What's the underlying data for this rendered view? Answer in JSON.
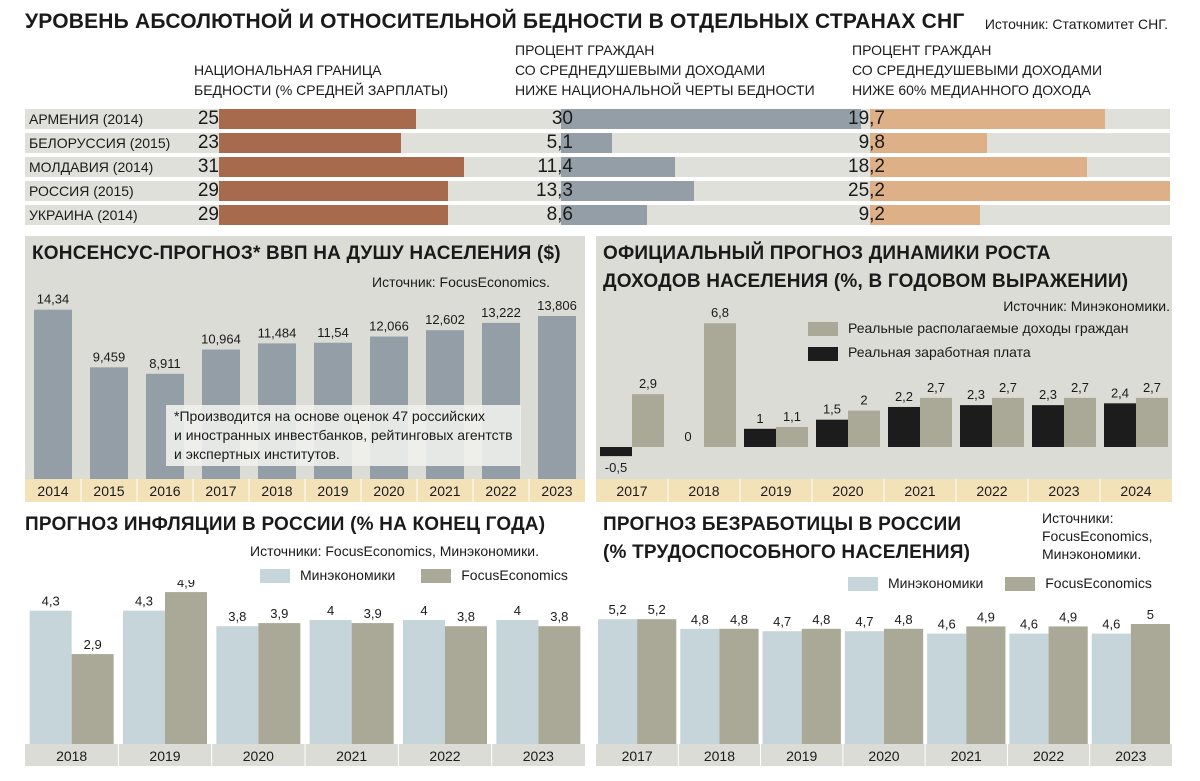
{
  "poverty": {
    "title": "УРОВЕНЬ АБСОЛЮТНОЙ И ОТНОСИТЕЛЬНОЙ БЕДНОСТИ В ОТДЕЛЬНЫХ СТРАНАХ СНГ",
    "source": "Источник: Статкомитет СНГ.",
    "col1_header": [
      "НАЦИОНАЛЬНАЯ ГРАНИЦА",
      "БЕДНОСТИ (% СРЕДНЕЙ ЗАРПЛАТЫ)"
    ],
    "col2_header": [
      "ПРОЦЕНТ ГРАЖДАН",
      "СО СРЕДНЕДУШЕВЫМИ ДОХОДАМИ",
      "НИЖЕ НАЦИОНАЛЬНОЙ ЧЕРТЫ БЕДНОСТИ"
    ],
    "col3_header": [
      "ПРОЦЕНТ ГРАЖДАН",
      "СО СРЕДНЕДУШЕВЫМИ ДОХОДАМИ",
      "НИЖЕ 60% МЕДИАННОГО ДОХОДА"
    ],
    "colors": {
      "col1": "#a86a4c",
      "col2": "#939ea7",
      "col3": "#ddb088",
      "track": "#e0e0db"
    }
  },
  "gdp": {
    "title": "КОНСЕНСУС-ПРОГНОЗ* ВВП НА ДУШУ НАСЕЛЕНИЯ ($)",
    "source": "Источник: FocusEconomics.",
    "note": [
      "*Производится на основе оценок 47 российских",
      "и иностранных инвестбанков, рейтинговых агентств",
      "и экспертных институтов."
    ]
  },
  "income": {
    "title": [
      "ОФИЦИАЛЬНЫЙ ПРОГНОЗ ДИНАМИКИ РОСТА",
      "ДОХОДОВ НАСЕЛЕНИЯ (%, В ГОДОВОМ ВЫРАЖЕНИИ)"
    ],
    "source": "Источник: Минэкономики."
  },
  "inflation": {
    "title": "ПРОГНОЗ ИНФЛЯЦИИ В РОССИИ (% НА КОНЕЦ ГОДА)",
    "source": "Источники: FocusEconomics, Минэкономики."
  },
  "unemployment": {
    "title": [
      "ПРОГНОЗ БЕЗРАБОТИЦЫ В РОССИИ",
      "(% ТРУДОСПОСОБНОГО НАСЕЛЕНИЯ)"
    ],
    "source": [
      "Источники:",
      "FocusEconomics,",
      "Минэкономики."
    ]
  },
  "chart_data": [
    {
      "id": "poverty",
      "type": "bar",
      "orientation": "horizontal",
      "categories": [
        "АРМЕНИЯ (2014)",
        "БЕЛОРУССИЯ (2015)",
        "МОЛДАВИЯ (2014)",
        "РОССИЯ (2015)",
        "УКРАИНА (2014)"
      ],
      "series": [
        {
          "name": "НАЦИОНАЛЬНАЯ ГРАНИЦА БЕДНОСТИ (% СРЕДНЕЙ ЗАРПЛАТЫ)",
          "values": [
            25,
            23,
            31,
            29,
            29
          ],
          "labels": [
            "25",
            "23",
            "31",
            "29",
            "29"
          ],
          "max": 37.5
        },
        {
          "name": "ПРОЦЕНТ ГРАЖДАН СО СРЕДНЕДУШЕВЫМИ ДОХОДАМИ НИЖЕ НАЦИОНАЛЬНОЙ ЧЕРТЫ БЕДНОСТИ",
          "values": [
            30,
            5.1,
            11.4,
            13.3,
            8.6
          ],
          "labels": [
            "30",
            "5,1",
            "11,4",
            "13,3",
            "8,6"
          ],
          "max": 30
        },
        {
          "name": "ПРОЦЕНТ ГРАЖДАН СО СРЕДНЕДУШЕВЫМИ ДОХОДАМИ НИЖЕ 60% МЕДИАННОГО ДОХОДА",
          "values": [
            19.7,
            9.8,
            18.2,
            25.2,
            9.2
          ],
          "labels": [
            "19,7",
            "9,8",
            "18,2",
            "25,2",
            "9,2"
          ],
          "max": 25.2
        }
      ]
    },
    {
      "id": "gdp",
      "type": "bar",
      "categories": [
        "2014",
        "2015",
        "2016",
        "2017",
        "2018",
        "2019",
        "2020",
        "2021",
        "2022",
        "2023"
      ],
      "values": [
        14.34,
        9.459,
        8.911,
        10.964,
        11.484,
        11.54,
        12.066,
        12.602,
        13.222,
        13.806
      ],
      "labels": [
        "14,34",
        "9,459",
        "8,911",
        "10,964",
        "11,484",
        "11,54",
        "12,066",
        "12,602",
        "13,222",
        "13,806"
      ],
      "ylim": [
        0,
        15.5
      ],
      "color": "#939ea7"
    },
    {
      "id": "income",
      "type": "bar",
      "categories": [
        "2017",
        "2018",
        "2019",
        "2020",
        "2021",
        "2022",
        "2023",
        "2024"
      ],
      "series": [
        {
          "name": "Реальная заработная плата",
          "values": [
            -0.5,
            0,
            1,
            1.5,
            2.2,
            2.3,
            2.3,
            2.4
          ],
          "labels": [
            "-0,5",
            "0",
            "1",
            "1,5",
            "2,2",
            "2,3",
            "2,3",
            "2,4"
          ],
          "color": "#1c1c1c"
        },
        {
          "name": "Реальные располагаемые доходы граждан",
          "values": [
            2.9,
            6.8,
            1.1,
            2,
            2.7,
            2.7,
            2.7,
            2.7
          ],
          "labels": [
            "2,9",
            "6,8",
            "1,1",
            "2",
            "2,7",
            "2,7",
            "2,7",
            "2,7"
          ],
          "color": "#aaa897"
        }
      ],
      "legend_order": [
        "Реальные располагаемые доходы граждан",
        "Реальная заработная плата"
      ],
      "ylim": [
        -1,
        7.5
      ]
    },
    {
      "id": "inflation",
      "type": "bar",
      "categories": [
        "2018",
        "2019",
        "2020",
        "2021",
        "2022",
        "2023"
      ],
      "series": [
        {
          "name": "Минэкономики",
          "values": [
            4.3,
            4.3,
            3.8,
            4,
            4,
            4
          ],
          "labels": [
            "4,3",
            "4,3",
            "3,8",
            "4",
            "4",
            "4"
          ],
          "color": "#c6d5d9"
        },
        {
          "name": "FocusEconomics",
          "values": [
            2.9,
            4.9,
            3.9,
            3.9,
            3.8,
            3.8
          ],
          "labels": [
            "2,9",
            "4,9",
            "3,9",
            "3,9",
            "3,8",
            "3,8"
          ],
          "color": "#aaa897"
        }
      ],
      "ylim": [
        0,
        5.5
      ]
    },
    {
      "id": "unemployment",
      "type": "bar",
      "categories": [
        "2017",
        "2018",
        "2019",
        "2020",
        "2021",
        "2022",
        "2023"
      ],
      "series": [
        {
          "name": "Минэкономики",
          "values": [
            5.2,
            4.8,
            4.7,
            4.7,
            4.6,
            4.6,
            4.6
          ],
          "labels": [
            "5,2",
            "4,8",
            "4,7",
            "4,7",
            "4,6",
            "4,6",
            "4,6"
          ],
          "color": "#c6d5d9"
        },
        {
          "name": "FocusEconomics",
          "values": [
            5.2,
            4.8,
            4.8,
            4.8,
            4.9,
            4.9,
            5
          ],
          "labels": [
            "5,2",
            "4,8",
            "4,8",
            "4,8",
            "4,9",
            "4,9",
            "5"
          ],
          "color": "#aaa897"
        }
      ],
      "ylim": [
        0,
        6
      ]
    }
  ]
}
